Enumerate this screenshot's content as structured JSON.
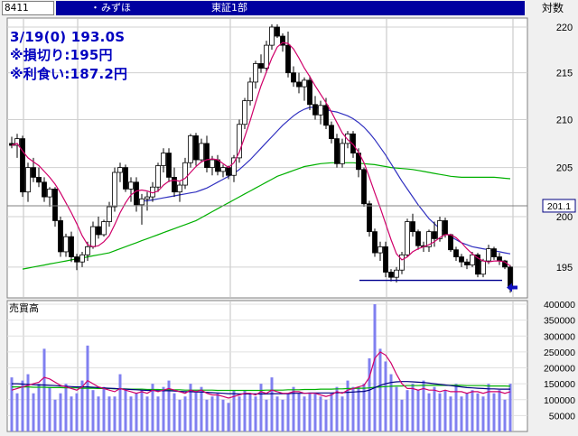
{
  "header": {
    "code": "8411",
    "dot": "・",
    "name": "みずほ",
    "market": "東証1部",
    "scale": "対数"
  },
  "annotations": {
    "line1": "3/19(0) 193.0S",
    "line2": "※損切り:195円",
    "line3": "※利食い:187.2円"
  },
  "volume_label": "売買高",
  "current_price_label": "201.1",
  "colors": {
    "up": "#ffffff",
    "down": "#000000",
    "ma_short": "#d0006a",
    "ma_mid": "#3030c0",
    "ma_long": "#00b000",
    "volume_bar": "#8080f0",
    "target_line": "#000090",
    "arrow": "#1010c0"
  },
  "chart_data": [
    {
      "type": "candlestick",
      "title": "",
      "y_scale": "log",
      "ylim": [
        192,
        221
      ],
      "y_ticks": [
        195,
        200,
        205,
        210,
        215,
        220
      ],
      "candles": [
        [
          207.5,
          208.2,
          207,
          207.3
        ],
        [
          207.3,
          208.5,
          206,
          208
        ],
        [
          208,
          208.3,
          202,
          202.5
        ],
        [
          202.5,
          205.5,
          201.5,
          205
        ],
        [
          205,
          206,
          203.5,
          204
        ],
        [
          204,
          205,
          203,
          203.5
        ],
        [
          203.5,
          204,
          201.5,
          202
        ],
        [
          202,
          203,
          201,
          202.8
        ],
        [
          202.8,
          203,
          199,
          199.6
        ],
        [
          199.6,
          200,
          196,
          196.5
        ],
        [
          196.5,
          198.3,
          196,
          198
        ],
        [
          198,
          198.5,
          195.5,
          196
        ],
        [
          196,
          196.3,
          194.7,
          195.5
        ],
        [
          195.5,
          196.5,
          195,
          196.2
        ],
        [
          196.2,
          197.5,
          195.6,
          197
        ],
        [
          197,
          199.5,
          196.8,
          199
        ],
        [
          199,
          200,
          197.8,
          198.2
        ],
        [
          198.2,
          199.7,
          198,
          199.5
        ],
        [
          199.5,
          201.5,
          199,
          201
        ],
        [
          201,
          205,
          200.5,
          204.5
        ],
        [
          204.5,
          205.5,
          203.5,
          205
        ],
        [
          205,
          205.3,
          202.5,
          202.8
        ],
        [
          202.8,
          204,
          201.5,
          203.5
        ],
        [
          203.5,
          204,
          200.5,
          201.2
        ],
        [
          201.2,
          202.3,
          199.2,
          201.8
        ],
        [
          201.8,
          202.5,
          200.6,
          202
        ],
        [
          202,
          203.5,
          201.5,
          203
        ],
        [
          203,
          205.5,
          202.5,
          205.2
        ],
        [
          205.2,
          207,
          204.5,
          206.5
        ],
        [
          206.5,
          207,
          203.5,
          204
        ],
        [
          204,
          205,
          202,
          202.5
        ],
        [
          202.5,
          203.5,
          201.5,
          203.2
        ],
        [
          203.2,
          206,
          202.8,
          205.5
        ],
        [
          205.5,
          208.5,
          205,
          208.3
        ],
        [
          208.3,
          208.6,
          205.2,
          205.8
        ],
        [
          205.8,
          208,
          205.5,
          207.5
        ],
        [
          207.5,
          208.3,
          204.5,
          205
        ],
        [
          205,
          206.2,
          204.2,
          205.8
        ],
        [
          205.8,
          206.3,
          204.2,
          204.6
        ],
        [
          204.6,
          205.3,
          204,
          205
        ],
        [
          205,
          205.2,
          203.8,
          204.2
        ],
        [
          204.2,
          206.3,
          203.5,
          206
        ],
        [
          206,
          210,
          205.5,
          209.5
        ],
        [
          209.5,
          212.3,
          209,
          212
        ],
        [
          212,
          214.5,
          211.5,
          214
        ],
        [
          214,
          216.3,
          213.3,
          216
        ],
        [
          216,
          217,
          215,
          215.5
        ],
        [
          215.5,
          218.5,
          215,
          218
        ],
        [
          218,
          220.3,
          217.5,
          220
        ],
        [
          220,
          220.3,
          218.8,
          219
        ],
        [
          219,
          219.3,
          217.3,
          218
        ],
        [
          218,
          219.5,
          214.5,
          215
        ],
        [
          215,
          215.7,
          213.5,
          214
        ],
        [
          214,
          215,
          212.8,
          213.5
        ],
        [
          213.5,
          214.5,
          212,
          214.2
        ],
        [
          214.2,
          214.7,
          211,
          211.6
        ],
        [
          211.6,
          212.5,
          210,
          210.5
        ],
        [
          210.5,
          212,
          209.5,
          211.5
        ],
        [
          211.5,
          212.3,
          209,
          209.4
        ],
        [
          209.4,
          209.8,
          207.5,
          208
        ],
        [
          208,
          208.5,
          205,
          205.4
        ],
        [
          205.4,
          208,
          205,
          207.5
        ],
        [
          207.5,
          208.8,
          207,
          208.5
        ],
        [
          208.5,
          208.8,
          206,
          206.5
        ],
        [
          206.5,
          207,
          204,
          204.8
        ],
        [
          204.8,
          205,
          201,
          201.3
        ],
        [
          201.3,
          201.6,
          198,
          198.5
        ],
        [
          198.5,
          198.8,
          196,
          196.4
        ],
        [
          196.4,
          197.5,
          195.6,
          197
        ],
        [
          197,
          197.5,
          194,
          194.5
        ],
        [
          194.5,
          194.8,
          193.6,
          194
        ],
        [
          194,
          195,
          193.5,
          194.7
        ],
        [
          194.7,
          196.5,
          194.3,
          196.2
        ],
        [
          196.2,
          199.8,
          196,
          199.5
        ],
        [
          199.5,
          200.3,
          198,
          198.5
        ],
        [
          198.5,
          198.7,
          196.7,
          197.1
        ],
        [
          197.1,
          197.5,
          196.5,
          197
        ],
        [
          197,
          198.7,
          196.5,
          198.5
        ],
        [
          198.5,
          199.5,
          197,
          197.8
        ],
        [
          197.8,
          200,
          197.5,
          199.6
        ],
        [
          199.6,
          199.9,
          197.9,
          198.2
        ],
        [
          198.2,
          198.3,
          196.5,
          196.7
        ],
        [
          196.7,
          197,
          195.6,
          196
        ],
        [
          196,
          196.3,
          195,
          195.5
        ],
        [
          195.5,
          195.8,
          194.8,
          195.2
        ],
        [
          195.2,
          196.5,
          195,
          196.2
        ],
        [
          196.2,
          196.4,
          194,
          194.3
        ],
        [
          194.3,
          195.8,
          194,
          195.6
        ],
        [
          195.6,
          197.2,
          195.3,
          196.8
        ],
        [
          196.8,
          197,
          195.7,
          196
        ],
        [
          196,
          196.4,
          195.2,
          195.6
        ],
        [
          195.6,
          195.7,
          194.8,
          195
        ],
        [
          195,
          195.2,
          192.5,
          193
        ]
      ],
      "ma_short": [
        207.3,
        207.5,
        206.7,
        206,
        205.6,
        205.2,
        204.6,
        204,
        203.3,
        202.4,
        201.4,
        200.4,
        199.3,
        198.1,
        197.2,
        197,
        197.1,
        197.5,
        198.1,
        199.2,
        200.4,
        201.4,
        202.2,
        202.6,
        202.7,
        202.6,
        202.4,
        202.6,
        203.2,
        203.6,
        203.7,
        203.6,
        203.9,
        204.5,
        205.1,
        205.6,
        205.8,
        205.9,
        205.8,
        205.4,
        205,
        205.5,
        206.6,
        208.2,
        209.9,
        211.8,
        213.6,
        215.1,
        216.6,
        217.8,
        218.3,
        218.2,
        217.6,
        216.6,
        215.5,
        214.6,
        213.6,
        212.7,
        211.8,
        210.8,
        209.7,
        208.6,
        207.9,
        207.4,
        206.6,
        205.5,
        204,
        202.4,
        200.9,
        199.3,
        197.7,
        196.3,
        195.7,
        196,
        196.5,
        196.8,
        197,
        197.2,
        197.5,
        197.9,
        198.2,
        198.2,
        197.9,
        197.4,
        196.8,
        196.3,
        195.9,
        195.6,
        195.5,
        195.6,
        195.6,
        195.5,
        195.1
      ],
      "ma_mid": [
        null,
        null,
        null,
        null,
        null,
        null,
        null,
        null,
        null,
        null,
        null,
        null,
        null,
        null,
        null,
        null,
        null,
        null,
        null,
        null,
        null,
        null,
        null,
        null,
        201.6,
        201.6,
        201.7,
        201.8,
        201.9,
        202,
        202.1,
        202.2,
        202.3,
        202.4,
        202.5,
        202.7,
        202.9,
        203.2,
        203.5,
        203.8,
        204.1,
        204.4,
        204.8,
        205.3,
        205.8,
        206.4,
        207,
        207.6,
        208.2,
        208.8,
        209.4,
        209.9,
        210.4,
        210.8,
        211.1,
        211.3,
        211.3,
        211.2,
        211.1,
        210.9,
        210.8,
        210.6,
        210.4,
        210.1,
        209.7,
        209.2,
        208.6,
        207.9,
        207.1,
        206.3,
        205.4,
        204.5,
        203.6,
        202.8,
        202,
        201.2,
        200.5,
        199.8,
        199.3,
        198.8,
        198.4,
        198,
        197.7,
        197.4,
        197.2,
        197,
        196.9,
        196.8,
        196.7,
        196.6,
        196.5,
        196.4,
        196.3
      ],
      "ma_long": [
        null,
        null,
        194.8,
        194.9,
        195,
        195.1,
        195.2,
        195.3,
        195.4,
        195.5,
        195.6,
        195.7,
        195.8,
        195.9,
        196,
        196.1,
        196.2,
        196.3,
        196.4,
        196.6,
        196.8,
        197,
        197.2,
        197.4,
        197.6,
        197.8,
        198,
        198.2,
        198.4,
        198.6,
        198.8,
        199,
        199.2,
        199.4,
        199.6,
        199.9,
        200.2,
        200.5,
        200.8,
        201.1,
        201.4,
        201.7,
        202,
        202.3,
        202.6,
        202.9,
        203.2,
        203.5,
        203.8,
        204.1,
        204.3,
        204.5,
        204.7,
        204.9,
        205.1,
        205.2,
        205.3,
        205.4,
        205.45,
        205.5,
        205.5,
        205.5,
        205.5,
        205.5,
        205.45,
        205.4,
        205.35,
        205.3,
        205.2,
        205.1,
        205,
        204.95,
        204.9,
        204.85,
        204.8,
        204.7,
        204.6,
        204.5,
        204.4,
        204.3,
        204.2,
        204.1,
        204.05,
        204,
        204,
        204,
        204,
        204,
        204,
        204,
        203.95,
        203.9,
        203.85
      ],
      "horizontal_lines": [
        {
          "label": "201.1",
          "value": 201.1
        },
        {
          "label": "",
          "value": 193.7
        }
      ]
    },
    {
      "type": "bar",
      "title": "売買高",
      "ylim": [
        0,
        400000
      ],
      "y_ticks": [
        50000,
        100000,
        150000,
        200000,
        250000,
        300000,
        350000,
        400000
      ],
      "values": [
        170000,
        120000,
        160000,
        180000,
        120000,
        150000,
        260000,
        140000,
        100000,
        120000,
        150000,
        110000,
        120000,
        160000,
        270000,
        130000,
        110000,
        140000,
        110000,
        110000,
        180000,
        130000,
        110000,
        120000,
        130000,
        110000,
        150000,
        110000,
        140000,
        160000,
        120000,
        100000,
        110000,
        150000,
        130000,
        140000,
        100000,
        110000,
        120000,
        100000,
        90000,
        130000,
        110000,
        130000,
        120000,
        110000,
        150000,
        100000,
        170000,
        110000,
        100000,
        120000,
        140000,
        120000,
        110000,
        120000,
        120000,
        110000,
        100000,
        120000,
        140000,
        110000,
        160000,
        140000,
        140000,
        150000,
        230000,
        400000,
        260000,
        220000,
        180000,
        140000,
        100000,
        130000,
        150000,
        130000,
        160000,
        120000,
        140000,
        120000,
        130000,
        110000,
        150000,
        110000,
        120000,
        130000,
        120000,
        110000,
        150000,
        120000,
        130000,
        100000,
        150000
      ],
      "ma_short": [
        130000,
        135000,
        140000,
        145000,
        150000,
        155000,
        170000,
        165000,
        155000,
        145000,
        140000,
        135000,
        130000,
        140000,
        160000,
        150000,
        140000,
        135000,
        130000,
        125000,
        135000,
        130000,
        125000,
        120000,
        125000,
        120000,
        130000,
        125000,
        130000,
        135000,
        130000,
        125000,
        120000,
        130000,
        125000,
        130000,
        120000,
        115000,
        115000,
        110000,
        105000,
        110000,
        115000,
        120000,
        120000,
        115000,
        125000,
        120000,
        130000,
        125000,
        120000,
        120000,
        125000,
        125000,
        120000,
        120000,
        120000,
        115000,
        110000,
        115000,
        125000,
        120000,
        130000,
        135000,
        140000,
        145000,
        170000,
        230000,
        250000,
        240000,
        215000,
        180000,
        150000,
        135000,
        135000,
        130000,
        135000,
        130000,
        130000,
        125000,
        130000,
        125000,
        125000,
        125000,
        120000,
        125000,
        125000,
        120000,
        125000,
        125000,
        125000,
        120000,
        125000
      ],
      "ma_mid": [
        150000,
        150000,
        149000,
        148000,
        147000,
        146000,
        146000,
        145000,
        144000,
        143000,
        142000,
        141000,
        140000,
        140000,
        140000,
        139000,
        138000,
        137000,
        136000,
        135000,
        134000,
        133000,
        132000,
        131000,
        130000,
        129000,
        129000,
        128000,
        128000,
        128000,
        127000,
        126000,
        125000,
        125000,
        124000,
        124000,
        123000,
        122000,
        121000,
        120000,
        119000,
        119000,
        118000,
        118000,
        118000,
        118000,
        118000,
        118000,
        119000,
        119000,
        119000,
        119000,
        120000,
        120000,
        120000,
        121000,
        121000,
        121000,
        121000,
        121000,
        122000,
        122000,
        123000,
        124000,
        125000,
        126000,
        130000,
        138000,
        145000,
        150000,
        154000,
        156000,
        157000,
        157000,
        156000,
        155000,
        154000,
        152000,
        150000,
        148000,
        146000,
        144000,
        142000,
        140000,
        138000,
        137000,
        136000,
        135000,
        134000,
        134000,
        133000,
        133000,
        133000
      ],
      "ma_long": [
        140000,
        140000,
        140000,
        140000,
        139000,
        139000,
        139000,
        138000,
        138000,
        138000,
        137000,
        137000,
        137000,
        136000,
        136000,
        136000,
        135000,
        135000,
        135000,
        134000,
        134000,
        134000,
        133000,
        133000,
        133000,
        132000,
        132000,
        132000,
        131000,
        131000,
        131000,
        131000,
        130000,
        130000,
        130000,
        130000,
        130000,
        130000,
        129000,
        129000,
        129000,
        129000,
        129000,
        129000,
        129000,
        129000,
        129000,
        130000,
        130000,
        130000,
        130000,
        131000,
        131000,
        131000,
        132000,
        132000,
        132000,
        133000,
        133000,
        133000,
        134000,
        134000,
        135000,
        135000,
        136000,
        136000,
        137000,
        139000,
        140000,
        141000,
        142000,
        143000,
        143000,
        144000,
        144000,
        144000,
        145000,
        145000,
        145000,
        145000,
        145000,
        145000,
        145000,
        145000,
        144000,
        144000,
        144000,
        144000,
        143000,
        143000,
        143000,
        143000,
        142000
      ]
    }
  ]
}
